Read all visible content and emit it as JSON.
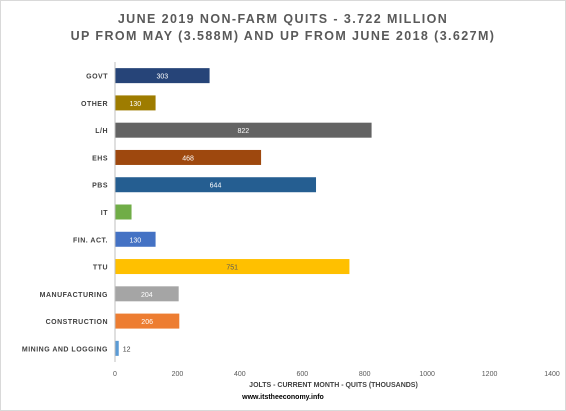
{
  "chart_data": {
    "type": "bar",
    "orientation": "horizontal",
    "title": "JUNE 2019 NON-FARM QUITS - 3.722 MILLION",
    "subtitle": "UP FROM MAY (3.588M) AND UP FROM JUNE 2018 (3.627M)",
    "xlabel": "JOLTS - CURRENT MONTH - QUITS (THOUSANDS)",
    "ylabel": "",
    "xlim": [
      0,
      1400
    ],
    "xticks": [
      0,
      200,
      400,
      600,
      800,
      1000,
      1200,
      1400
    ],
    "grid": false,
    "legend": "none",
    "categories": [
      "GOVT",
      "OTHER",
      "L/H",
      "EHS",
      "PBS",
      "IT",
      "FIN. ACT.",
      "TTU",
      "MANUFACTURING",
      "CONSTRUCTION",
      "MINING AND LOGGING"
    ],
    "values": [
      303,
      130,
      822,
      468,
      644,
      53,
      130,
      751,
      204,
      206,
      12
    ],
    "colors": [
      "#264478",
      "#9e7c00",
      "#636363",
      "#9e480e",
      "#255e91",
      "#70ad47",
      "#4472c4",
      "#ffc000",
      "#a5a5a5",
      "#ed7d31",
      "#5b9bd5"
    ],
    "label_colors": [
      "#ffffff",
      "#ffffff",
      "#ffffff",
      "#ffffff",
      "#ffffff",
      "#ffffff",
      "#ffffff",
      "#595959",
      "#ffffff",
      "#ffffff",
      "#404040"
    ]
  },
  "footer": {
    "source": "www.itstheeconomy.info"
  }
}
